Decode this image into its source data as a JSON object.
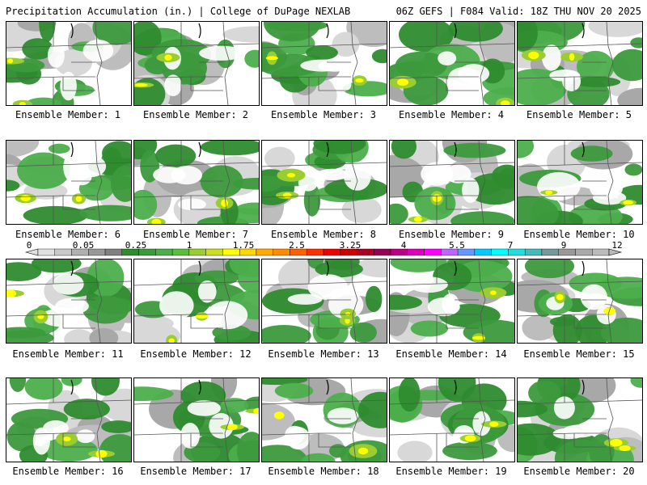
{
  "header": {
    "title_left": "Precipitation Accumulation (in.) | College of DuPage NEXLAB",
    "title_right": "06Z GEFS | F084 Valid: 18Z THU NOV 20 2025"
  },
  "members": [
    "Ensemble Member: 1",
    "Ensemble Member: 2",
    "Ensemble Member: 3",
    "Ensemble Member: 4",
    "Ensemble Member: 5",
    "Ensemble Member: 6",
    "Ensemble Member: 7",
    "Ensemble Member: 8",
    "Ensemble Member: 9",
    "Ensemble Member: 10",
    "Ensemble Member: 11",
    "Ensemble Member: 12",
    "Ensemble Member: 13",
    "Ensemble Member: 14",
    "Ensemble Member: 15",
    "Ensemble Member: 16",
    "Ensemble Member: 17",
    "Ensemble Member: 18",
    "Ensemble Member: 19",
    "Ensemble Member: 20"
  ],
  "colorbar": {
    "tick_labels": [
      "0",
      "0.05",
      "0.25",
      "1",
      "1.75",
      "2.5",
      "3.25",
      "4",
      "5.5",
      "7",
      "9",
      "12"
    ],
    "colors": [
      "#e0e0e0",
      "#c8c8c8",
      "#b0b0b0",
      "#989898",
      "#808080",
      "#2e8b2e",
      "#3c9a3c",
      "#4caf4c",
      "#5cbf3c",
      "#9acd32",
      "#ccdd22",
      "#ffff00",
      "#ffd700",
      "#ffaa00",
      "#ff8c00",
      "#ff6000",
      "#ff3000",
      "#ee0000",
      "#cc0000",
      "#aa0022",
      "#990055",
      "#bb0088",
      "#dd00bb",
      "#ff00ff",
      "#bb66ff",
      "#6699ff",
      "#00ccff",
      "#00ffff",
      "#22dddd",
      "#44bbbb",
      "#779999",
      "#999999",
      "#aaaaaa",
      "#bbbbbb"
    ]
  }
}
